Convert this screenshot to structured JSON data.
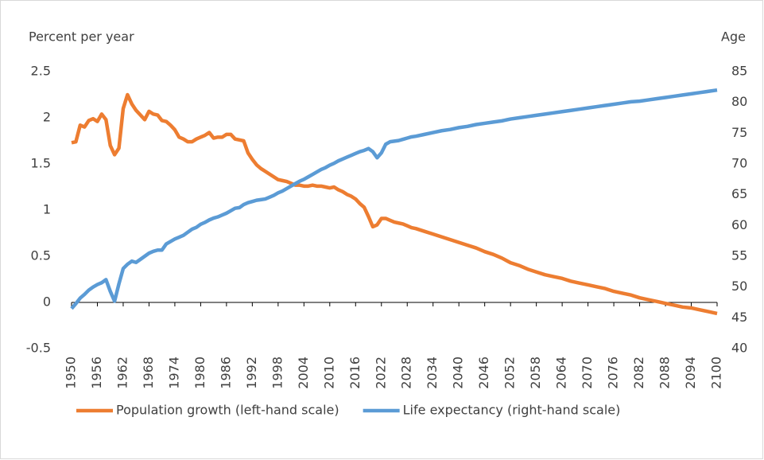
{
  "chart_data": {
    "type": "line",
    "y_label": "Percent per year",
    "y2_label": "Age",
    "x": [
      1950,
      1951,
      1952,
      1953,
      1954,
      1955,
      1956,
      1957,
      1958,
      1959,
      1960,
      1961,
      1962,
      1963,
      1964,
      1965,
      1966,
      1967,
      1968,
      1969,
      1970,
      1971,
      1972,
      1973,
      1974,
      1975,
      1976,
      1977,
      1978,
      1979,
      1980,
      1981,
      1982,
      1983,
      1984,
      1985,
      1986,
      1987,
      1988,
      1989,
      1990,
      1991,
      1992,
      1993,
      1994,
      1995,
      1996,
      1997,
      1998,
      1999,
      2000,
      2001,
      2002,
      2003,
      2004,
      2005,
      2006,
      2007,
      2008,
      2009,
      2010,
      2011,
      2012,
      2013,
      2014,
      2015,
      2016,
      2017,
      2018,
      2019,
      2020,
      2021,
      2022,
      2023,
      2024,
      2025,
      2026,
      2027,
      2028,
      2029,
      2030,
      2032,
      2034,
      2036,
      2038,
      2040,
      2042,
      2044,
      2046,
      2048,
      2050,
      2052,
      2054,
      2056,
      2058,
      2060,
      2062,
      2064,
      2066,
      2068,
      2070,
      2072,
      2074,
      2076,
      2078,
      2080,
      2082,
      2084,
      2086,
      2088,
      2090,
      2092,
      2094,
      2096,
      2098,
      2100
    ],
    "series": [
      {
        "name": "Population growth (left-hand scale)",
        "color": "#ed7d31",
        "axis": "y",
        "values": [
          1.73,
          1.74,
          1.92,
          1.9,
          1.97,
          1.99,
          1.96,
          2.04,
          1.98,
          1.7,
          1.6,
          1.67,
          2.1,
          2.25,
          2.15,
          2.08,
          2.03,
          1.98,
          2.07,
          2.04,
          2.03,
          1.97,
          1.96,
          1.92,
          1.87,
          1.79,
          1.77,
          1.74,
          1.74,
          1.77,
          1.79,
          1.81,
          1.84,
          1.78,
          1.79,
          1.79,
          1.82,
          1.82,
          1.77,
          1.76,
          1.75,
          1.62,
          1.55,
          1.49,
          1.45,
          1.42,
          1.39,
          1.36,
          1.33,
          1.32,
          1.31,
          1.29,
          1.27,
          1.27,
          1.26,
          1.26,
          1.27,
          1.26,
          1.26,
          1.25,
          1.24,
          1.25,
          1.22,
          1.2,
          1.17,
          1.15,
          1.12,
          1.07,
          1.03,
          0.93,
          0.82,
          0.84,
          0.91,
          0.91,
          0.89,
          0.87,
          0.86,
          0.85,
          0.83,
          0.81,
          0.8,
          0.77,
          0.74,
          0.71,
          0.68,
          0.65,
          0.62,
          0.59,
          0.55,
          0.52,
          0.48,
          0.43,
          0.4,
          0.36,
          0.33,
          0.3,
          0.28,
          0.26,
          0.23,
          0.21,
          0.19,
          0.17,
          0.15,
          0.12,
          0.1,
          0.08,
          0.05,
          0.03,
          0.01,
          -0.01,
          -0.03,
          -0.05,
          -0.06,
          -0.08,
          -0.1,
          -0.12
        ]
      },
      {
        "name": "Life expectancy (right-hand scale)",
        "color": "#5b9bd5",
        "axis": "y2",
        "values": [
          46.5,
          47.3,
          48.2,
          48.8,
          49.5,
          50.0,
          50.4,
          50.7,
          51.2,
          49.3,
          47.7,
          50.5,
          53.0,
          53.7,
          54.2,
          54.0,
          54.5,
          55.0,
          55.5,
          55.8,
          56.0,
          56.0,
          57.0,
          57.4,
          57.8,
          58.1,
          58.4,
          58.9,
          59.4,
          59.7,
          60.2,
          60.5,
          60.9,
          61.2,
          61.4,
          61.7,
          62.0,
          62.4,
          62.8,
          62.9,
          63.4,
          63.7,
          63.9,
          64.1,
          64.2,
          64.3,
          64.6,
          64.9,
          65.3,
          65.6,
          66.0,
          66.4,
          66.8,
          67.2,
          67.5,
          67.9,
          68.3,
          68.7,
          69.1,
          69.4,
          69.8,
          70.1,
          70.5,
          70.8,
          71.1,
          71.4,
          71.7,
          72.0,
          72.2,
          72.5,
          72.0,
          71.0,
          71.8,
          73.2,
          73.6,
          73.7,
          73.8,
          74.0,
          74.2,
          74.4,
          74.5,
          74.8,
          75.1,
          75.4,
          75.6,
          75.9,
          76.1,
          76.4,
          76.6,
          76.8,
          77.0,
          77.3,
          77.5,
          77.7,
          77.9,
          78.1,
          78.3,
          78.5,
          78.7,
          78.9,
          79.1,
          79.3,
          79.5,
          79.7,
          79.9,
          80.1,
          80.2,
          80.4,
          80.6,
          80.8,
          81.0,
          81.2,
          81.4,
          81.6,
          81.8,
          82.0
        ]
      }
    ],
    "xlim": [
      1950,
      2100
    ],
    "xticks": [
      1950,
      1956,
      1962,
      1968,
      1974,
      1980,
      1986,
      1992,
      1998,
      2004,
      2010,
      2016,
      2022,
      2028,
      2034,
      2040,
      2046,
      2052,
      2058,
      2064,
      2070,
      2076,
      2082,
      2088,
      2094,
      2100
    ],
    "ylim": [
      -0.5,
      2.5
    ],
    "yticks": [
      -0.5,
      0,
      0.5,
      1,
      1.5,
      2,
      2.5
    ],
    "y2lim": [
      40,
      85
    ],
    "y2ticks": [
      40,
      45,
      50,
      55,
      60,
      65,
      70,
      75,
      80,
      85
    ],
    "grid": false,
    "legend": "bottom"
  }
}
